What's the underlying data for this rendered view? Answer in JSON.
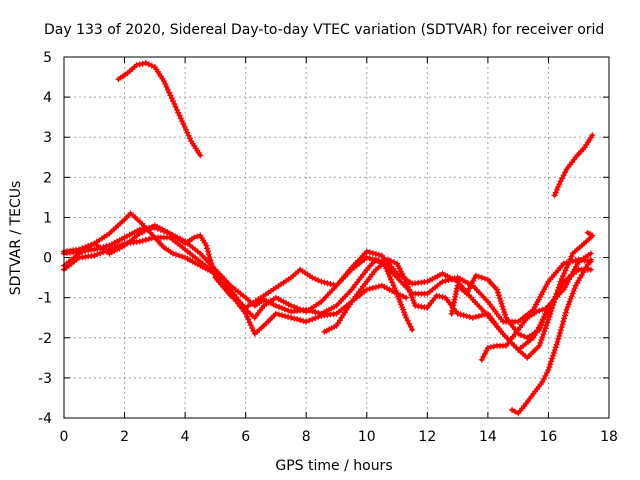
{
  "chart_data": {
    "type": "line",
    "title": "Day 133 of 2020, Sidereal Day-to-day VTEC variation (SDTVAR) for receiver orid",
    "xlabel": "GPS time / hours",
    "ylabel": "SDTVAR / TECUs",
    "xlim": [
      0,
      18
    ],
    "ylim": [
      -4,
      5
    ],
    "xticks": [
      "0",
      "2",
      "4",
      "6",
      "8",
      "10",
      "12",
      "14",
      "16",
      "18"
    ],
    "yticks": [
      "-4",
      "-3",
      "-2",
      "-1",
      "0",
      "1",
      "2",
      "3",
      "4",
      "5"
    ],
    "grid": true,
    "legend": "none",
    "marker": "plus",
    "color": "#ff0000",
    "series": [
      {
        "name": "trace-a",
        "points": [
          [
            0,
            0.1
          ],
          [
            0.5,
            0.15
          ],
          [
            1,
            0.2
          ],
          [
            1.5,
            0.3
          ],
          [
            2,
            0.5
          ],
          [
            2.5,
            0.7
          ],
          [
            3,
            0.75
          ],
          [
            3.5,
            0.6
          ],
          [
            4,
            0.4
          ],
          [
            4.5,
            0.1
          ],
          [
            5,
            -0.3
          ],
          [
            5.5,
            -0.7
          ],
          [
            6,
            -1.0
          ],
          [
            6.3,
            -1.2
          ],
          [
            6.6,
            -1.05
          ],
          [
            7,
            -1.2
          ],
          [
            7.5,
            -1.35
          ],
          [
            8,
            -1.3
          ],
          [
            8.5,
            -1.4
          ],
          [
            9,
            -1.2
          ],
          [
            9.5,
            -0.8
          ],
          [
            10,
            -0.3
          ],
          [
            10.3,
            -0.05
          ],
          [
            10.6,
            -0.2
          ],
          [
            11,
            -0.9
          ],
          [
            11.3,
            -1.5
          ],
          [
            11.5,
            -1.8
          ]
        ]
      },
      {
        "name": "trace-b",
        "points": [
          [
            0,
            -0.3
          ],
          [
            0.5,
            0.0
          ],
          [
            1,
            0.05
          ],
          [
            1.5,
            0.2
          ],
          [
            2,
            0.35
          ],
          [
            2.5,
            0.4
          ],
          [
            3,
            0.5
          ],
          [
            3.5,
            0.5
          ],
          [
            4,
            0.2
          ],
          [
            4.5,
            -0.1
          ],
          [
            5,
            -0.4
          ],
          [
            5.5,
            -0.8
          ],
          [
            6,
            -1.3
          ],
          [
            6.3,
            -1.5
          ],
          [
            6.6,
            -1.2
          ],
          [
            7,
            -1.0
          ],
          [
            7.5,
            -1.2
          ],
          [
            8,
            -1.35
          ],
          [
            8.5,
            -1.1
          ],
          [
            9,
            -0.7
          ],
          [
            9.5,
            -0.3
          ],
          [
            10,
            0.0
          ],
          [
            10.5,
            -0.1
          ],
          [
            11,
            -0.5
          ],
          [
            11.5,
            -0.9
          ],
          [
            12,
            -0.9
          ],
          [
            12.5,
            -0.6
          ],
          [
            13,
            -0.5
          ],
          [
            13.5,
            -0.7
          ],
          [
            14,
            -1.1
          ],
          [
            14.5,
            -1.6
          ],
          [
            15,
            -1.6
          ],
          [
            15.5,
            -1.3
          ],
          [
            16,
            -0.6
          ],
          [
            16.5,
            -0.15
          ],
          [
            17,
            -0.05
          ],
          [
            17.4,
            -0.1
          ]
        ]
      },
      {
        "name": "trace-c",
        "points": [
          [
            0,
            0.15
          ],
          [
            0.5,
            0.2
          ],
          [
            1,
            0.35
          ],
          [
            1.5,
            0.6
          ],
          [
            2,
            0.95
          ],
          [
            2.2,
            1.1
          ],
          [
            2.5,
            0.9
          ],
          [
            3,
            0.5
          ],
          [
            3.3,
            0.25
          ],
          [
            3.6,
            0.1
          ],
          [
            4,
            0.0
          ],
          [
            4.5,
            -0.2
          ],
          [
            5,
            -0.4
          ],
          [
            5.5,
            -0.9
          ],
          [
            6,
            -1.4
          ],
          [
            6.3,
            -1.9
          ],
          [
            6.6,
            -1.7
          ],
          [
            7,
            -1.4
          ],
          [
            7.5,
            -1.5
          ],
          [
            8,
            -1.6
          ],
          [
            8.5,
            -1.45
          ],
          [
            9,
            -1.4
          ],
          [
            9.5,
            -1.1
          ],
          [
            10,
            -0.8
          ],
          [
            10.5,
            -0.7
          ],
          [
            11,
            -0.9
          ],
          [
            11.3,
            -1.0
          ]
        ]
      },
      {
        "name": "trace-d",
        "points": [
          [
            0,
            -0.2
          ],
          [
            0.5,
            0.1
          ],
          [
            1,
            0.35
          ],
          [
            1.2,
            0.25
          ],
          [
            1.5,
            0.1
          ],
          [
            2,
            0.3
          ],
          [
            2.5,
            0.6
          ],
          [
            3,
            0.8
          ],
          [
            3.5,
            0.6
          ],
          [
            4,
            0.35
          ],
          [
            4.3,
            0.5
          ],
          [
            4.5,
            0.55
          ],
          [
            4.7,
            0.3
          ],
          [
            5,
            -0.5
          ],
          [
            5.5,
            -0.95
          ],
          [
            6,
            -1.25
          ],
          [
            6.5,
            -1.0
          ],
          [
            7,
            -0.75
          ],
          [
            7.5,
            -0.5
          ],
          [
            7.8,
            -0.3
          ],
          [
            8.2,
            -0.5
          ],
          [
            8.5,
            -0.6
          ],
          [
            9,
            -0.7
          ],
          [
            9.5,
            -0.25
          ],
          [
            10,
            0.15
          ],
          [
            10.5,
            0.05
          ],
          [
            11,
            -0.4
          ],
          [
            11.5,
            -0.65
          ],
          [
            12,
            -0.6
          ],
          [
            12.5,
            -0.4
          ],
          [
            13,
            -0.6
          ],
          [
            13.5,
            -1.05
          ],
          [
            14,
            -1.45
          ],
          [
            14.5,
            -1.9
          ],
          [
            15,
            -2.3
          ],
          [
            15.5,
            -2.0
          ],
          [
            16,
            -1.3
          ],
          [
            16.5,
            -0.6
          ],
          [
            17,
            -0.3
          ],
          [
            17.4,
            -0.3
          ]
        ]
      },
      {
        "name": "trace-e",
        "points": [
          [
            8.6,
            -1.85
          ],
          [
            9,
            -1.7
          ],
          [
            9.5,
            -1.1
          ],
          [
            10,
            -0.6
          ],
          [
            10.3,
            -0.3
          ],
          [
            10.7,
            -0.05
          ],
          [
            11,
            -0.15
          ],
          [
            11.3,
            -0.6
          ],
          [
            11.6,
            -1.2
          ],
          [
            12,
            -1.25
          ],
          [
            12.3,
            -0.95
          ],
          [
            12.6,
            -1.0
          ],
          [
            13,
            -1.4
          ],
          [
            13.5,
            -1.5
          ],
          [
            14,
            -1.4
          ],
          [
            14.5,
            -1.9
          ],
          [
            15,
            -2.3
          ],
          [
            15.3,
            -2.5
          ],
          [
            15.7,
            -2.2
          ],
          [
            16,
            -1.55
          ],
          [
            16.4,
            -0.6
          ],
          [
            16.8,
            0.1
          ],
          [
            17.1,
            0.3
          ],
          [
            17.4,
            0.5
          ]
        ]
      },
      {
        "name": "trace-f",
        "points": [
          [
            12.8,
            -1.4
          ],
          [
            13,
            -0.7
          ],
          [
            13.3,
            -0.9
          ],
          [
            13.6,
            -0.45
          ],
          [
            14,
            -0.55
          ],
          [
            14.3,
            -0.8
          ],
          [
            14.6,
            -1.5
          ],
          [
            15,
            -1.9
          ],
          [
            15.3,
            -2.0
          ],
          [
            15.7,
            -1.8
          ],
          [
            16,
            -1.2
          ],
          [
            16.5,
            -0.8
          ],
          [
            17,
            -0.1
          ],
          [
            17.4,
            0.1
          ]
        ]
      },
      {
        "name": "trace-g",
        "points": [
          [
            13.8,
            -2.55
          ],
          [
            14,
            -2.25
          ],
          [
            14.3,
            -2.2
          ],
          [
            14.6,
            -2.2
          ],
          [
            15,
            -1.8
          ],
          [
            15.3,
            -1.5
          ],
          [
            15.6,
            -1.35
          ],
          [
            16,
            -1.25
          ]
        ]
      },
      {
        "name": "trace-h",
        "points": [
          [
            1.8,
            4.45
          ],
          [
            2.1,
            4.6
          ],
          [
            2.4,
            4.8
          ],
          [
            2.7,
            4.85
          ],
          [
            3.0,
            4.75
          ],
          [
            3.3,
            4.4
          ],
          [
            3.6,
            3.9
          ],
          [
            3.9,
            3.4
          ],
          [
            4.2,
            2.9
          ],
          [
            4.5,
            2.55
          ]
        ]
      },
      {
        "name": "trace-i",
        "points": [
          [
            16.2,
            1.55
          ],
          [
            16.4,
            1.9
          ],
          [
            16.6,
            2.2
          ],
          [
            16.9,
            2.5
          ],
          [
            17.2,
            2.75
          ],
          [
            17.45,
            3.05
          ]
        ]
      },
      {
        "name": "trace-j",
        "points": [
          [
            14.8,
            -3.8
          ],
          [
            15.0,
            -3.88
          ],
          [
            15.2,
            -3.7
          ],
          [
            15.5,
            -3.4
          ],
          [
            15.8,
            -3.1
          ],
          [
            16.0,
            -2.8
          ],
          [
            16.3,
            -2.1
          ],
          [
            16.6,
            -1.3
          ],
          [
            16.9,
            -0.7
          ],
          [
            17.2,
            -0.3
          ],
          [
            17.4,
            -0.05
          ]
        ]
      },
      {
        "name": "trace-k",
        "points": [
          [
            17.3,
            0.62
          ],
          [
            17.45,
            0.55
          ]
        ]
      }
    ]
  }
}
